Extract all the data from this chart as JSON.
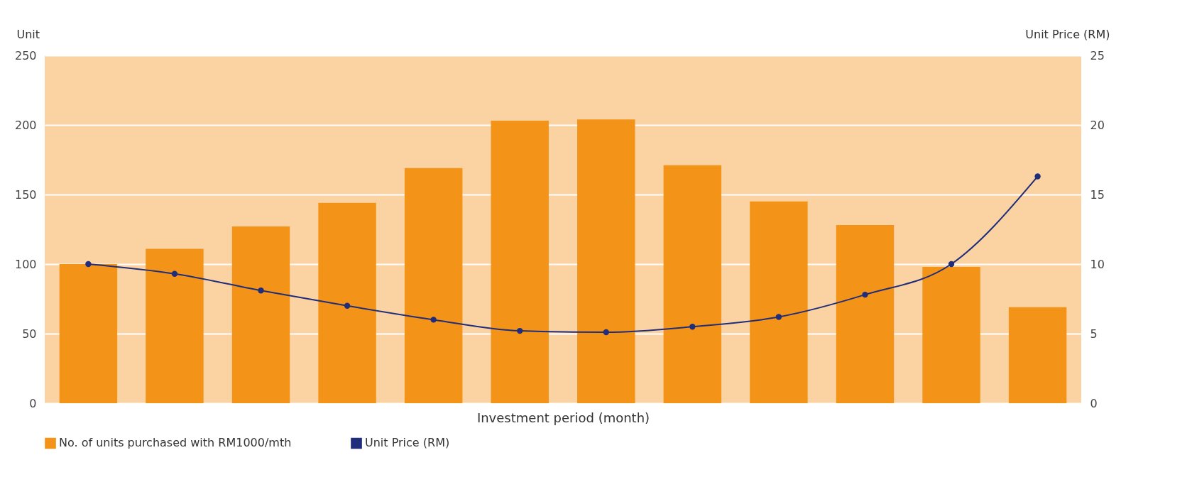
{
  "chart_data": {
    "type": "bar",
    "xlabel": "Investment period (month)",
    "ylabel": "Unit",
    "y2label": "Unit Price (RM)",
    "categories": [
      null,
      null,
      null,
      null,
      null,
      null,
      null,
      null,
      null,
      null,
      null,
      null
    ],
    "series": [
      {
        "name": "No. of units purchased with RM1000/mth",
        "color": "#f39419",
        "values": [
          100,
          111,
          127,
          144,
          169,
          203,
          204,
          171,
          145,
          128,
          98,
          69
        ]
      },
      {
        "name": "Unit Price (RM)",
        "type": "line",
        "axis": "y2",
        "color": "#1f2d7a",
        "values": [
          10.0,
          9.3,
          8.1,
          7.0,
          6.0,
          5.2,
          5.1,
          5.5,
          6.2,
          7.8,
          10.0,
          16.3
        ]
      }
    ],
    "ylim": [
      0,
      250
    ],
    "yticks": [
      0,
      50,
      100,
      150,
      200,
      250
    ],
    "y2lim": [
      0,
      25
    ],
    "y2ticks": [
      0,
      5,
      10,
      15,
      20,
      25
    ],
    "grid": "y",
    "legend": "bottom",
    "marker": "circle"
  }
}
